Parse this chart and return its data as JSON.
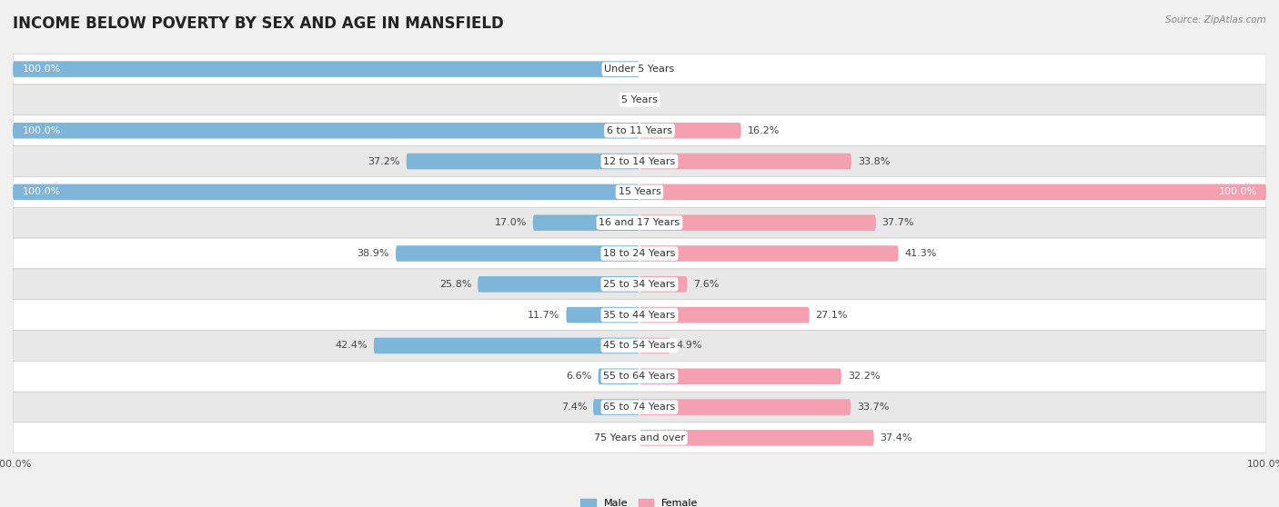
{
  "title": "INCOME BELOW POVERTY BY SEX AND AGE IN MANSFIELD",
  "source": "Source: ZipAtlas.com",
  "categories": [
    "Under 5 Years",
    "5 Years",
    "6 to 11 Years",
    "12 to 14 Years",
    "15 Years",
    "16 and 17 Years",
    "18 to 24 Years",
    "25 to 34 Years",
    "35 to 44 Years",
    "45 to 54 Years",
    "55 to 64 Years",
    "65 to 74 Years",
    "75 Years and over"
  ],
  "male": [
    100.0,
    0.0,
    100.0,
    37.2,
    100.0,
    17.0,
    38.9,
    25.8,
    11.7,
    42.4,
    6.6,
    7.4,
    0.0
  ],
  "female": [
    0.0,
    0.0,
    16.2,
    33.8,
    100.0,
    37.7,
    41.3,
    7.6,
    27.1,
    4.9,
    32.2,
    33.7,
    37.4
  ],
  "male_color": "#7eb6d9",
  "female_color": "#f4a0b0",
  "male_label": "Male",
  "female_label": "Female",
  "bar_height": 0.52,
  "xlim": 100,
  "background_color": "#f0f0f0",
  "row_color_odd": "#ffffff",
  "row_color_even": "#e8e8e8",
  "title_fontsize": 12,
  "label_fontsize": 8.0,
  "tick_fontsize": 8.0,
  "source_fontsize": 7.5
}
